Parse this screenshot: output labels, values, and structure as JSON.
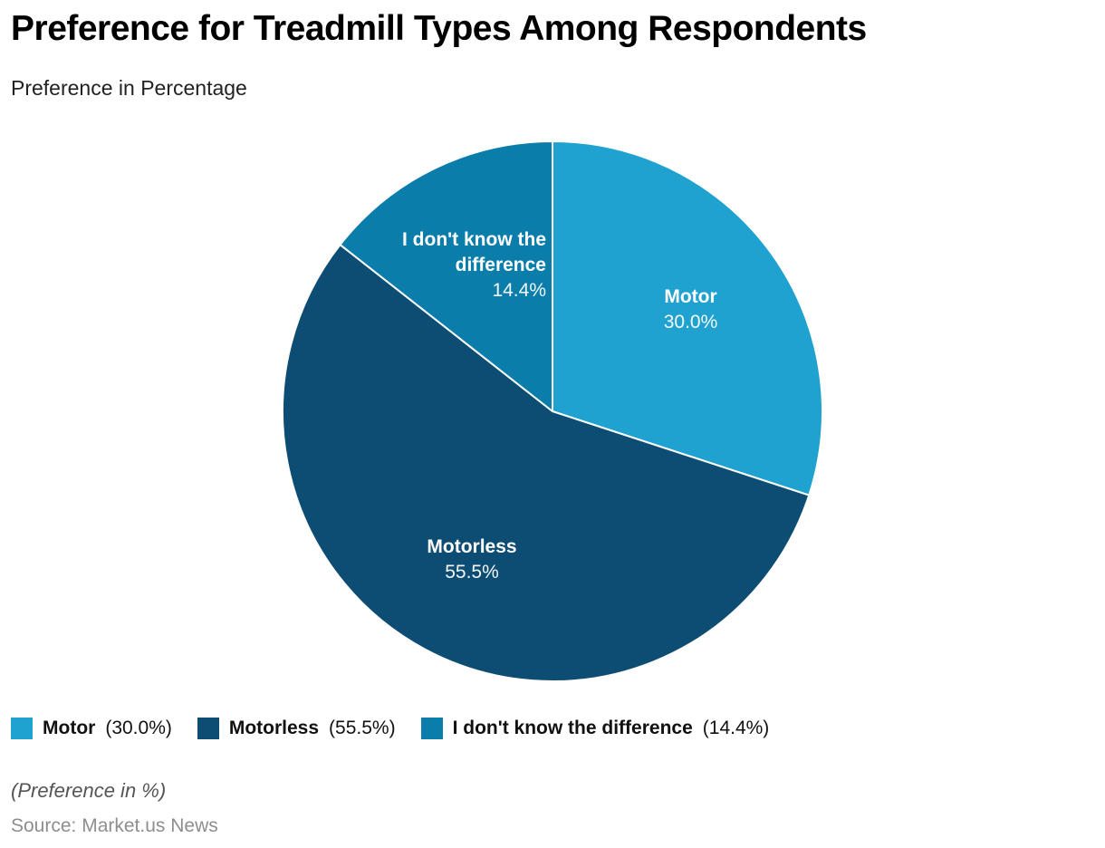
{
  "header": {
    "title": "Preference for Treadmill Types Among Respondents",
    "subtitle": "Preference in Percentage"
  },
  "chart_data": {
    "type": "pie",
    "title": "Preference for Treadmill Types Among Respondents",
    "subtitle": "Preference in Percentage",
    "unit": "percent",
    "start_angle_deg": 0,
    "direction": "clockwise",
    "legend_position": "bottom",
    "slices": [
      {
        "label": "Motor",
        "value": 30.0,
        "display": "30.0%",
        "legend_text": "(30.0%)",
        "color": "#1fa2d0"
      },
      {
        "label": "Motorless",
        "value": 55.5,
        "display": "55.5%",
        "legend_text": "(55.5%)",
        "color": "#0e4d73"
      },
      {
        "label": "I don't know the difference",
        "value": 14.4,
        "display": "14.4%",
        "legend_text": "(14.4%)",
        "color": "#0a7dab"
      }
    ]
  },
  "footer": {
    "note": "(Preference in %)",
    "source": "Source: Market.us News"
  }
}
